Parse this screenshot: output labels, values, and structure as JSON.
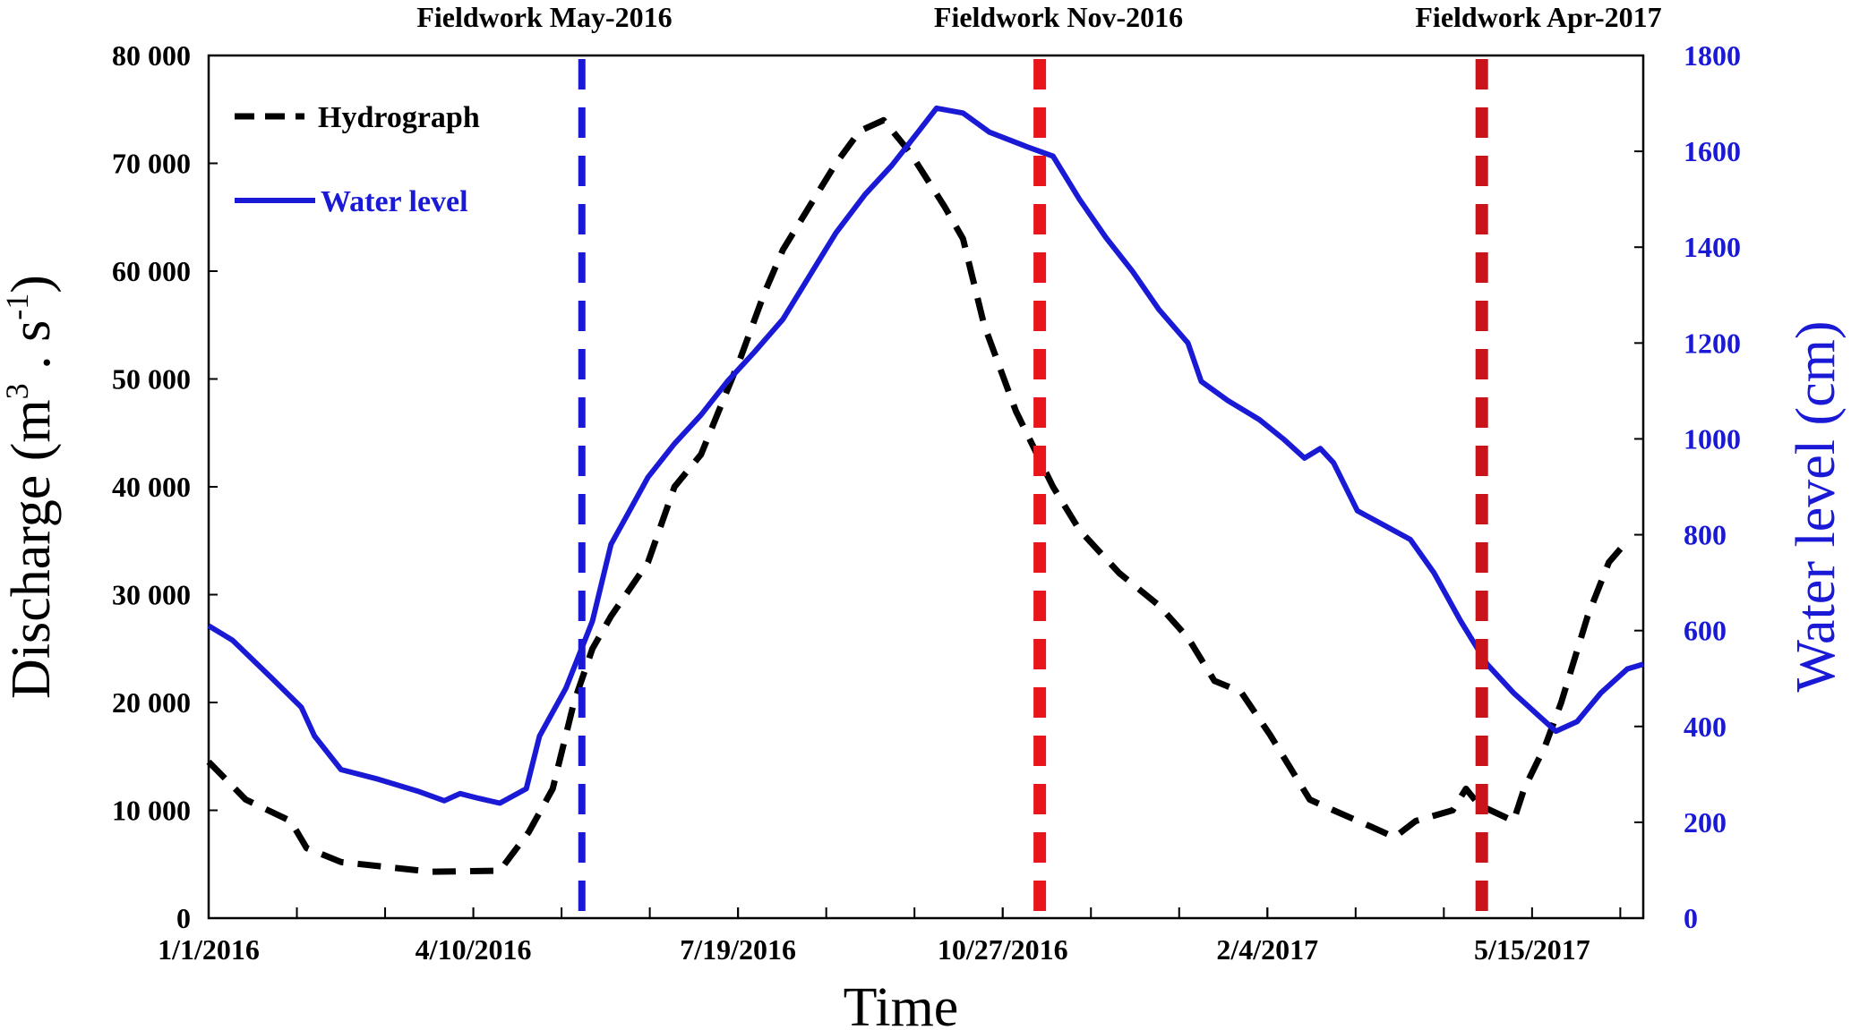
{
  "chart_data": {
    "type": "line",
    "xlabel": "Time",
    "x_ticks": [
      "1/1/2016",
      "4/10/2016",
      "7/19/2016",
      "10/27/2016",
      "2/4/2017",
      "5/15/2017"
    ],
    "x_range": [
      "1/1/2016",
      "5/26/2017"
    ],
    "y_left": {
      "label": "Discharge (m3 . s-1)",
      "label_main": "Discharge (m",
      "label_sup1": "3",
      "label_mid": " . s",
      "label_sup2": "-1",
      "label_end": ")",
      "range": [
        0,
        80000
      ],
      "ticks": [
        "0",
        "10 000",
        "20 000",
        "30 000",
        "40 000",
        "50 000",
        "60 000",
        "70 000",
        "80 000"
      ]
    },
    "y_right": {
      "label": "Water level (cm)",
      "range": [
        0,
        1800
      ],
      "ticks": [
        "0",
        "200",
        "400",
        "600",
        "800",
        "1000",
        "1200",
        "1400",
        "1600",
        "1800"
      ],
      "color": "#1a1ad6"
    },
    "legend_position": "top-left",
    "series": [
      {
        "name": "Hydrograph",
        "axis": "left",
        "color": "#000000",
        "style": "dashed",
        "points": [
          [
            "2016-01-01",
            14500
          ],
          [
            "2016-01-15",
            11000
          ],
          [
            "2016-02-01",
            9000
          ],
          [
            "2016-02-07",
            6500
          ],
          [
            "2016-02-20",
            5200
          ],
          [
            "2016-03-10",
            4700
          ],
          [
            "2016-03-25",
            4300
          ],
          [
            "2016-04-20",
            4400
          ],
          [
            "2016-05-01",
            8000
          ],
          [
            "2016-05-10",
            12000
          ],
          [
            "2016-05-18",
            20000
          ],
          [
            "2016-05-25",
            25000
          ],
          [
            "2016-06-01",
            28000
          ],
          [
            "2016-06-15",
            33000
          ],
          [
            "2016-06-25",
            40000
          ],
          [
            "2016-07-05",
            43000
          ],
          [
            "2016-07-20",
            52000
          ],
          [
            "2016-07-29",
            58000
          ],
          [
            "2016-08-05",
            62000
          ],
          [
            "2016-08-15",
            66000
          ],
          [
            "2016-08-25",
            70000
          ],
          [
            "2016-09-03",
            73000
          ],
          [
            "2016-09-12",
            74000
          ],
          [
            "2016-09-22",
            71000
          ],
          [
            "2016-10-05",
            66000
          ],
          [
            "2016-10-12",
            63000
          ],
          [
            "2016-10-20",
            55000
          ],
          [
            "2016-11-01",
            47000
          ],
          [
            "2016-11-15",
            40000
          ],
          [
            "2016-11-25",
            36000
          ],
          [
            "2016-12-10",
            32000
          ],
          [
            "2016-12-25",
            29000
          ],
          [
            "2017-01-05",
            26000
          ],
          [
            "2017-01-15",
            22000
          ],
          [
            "2017-01-25",
            21000
          ],
          [
            "2017-02-05",
            17000
          ],
          [
            "2017-02-20",
            11000
          ],
          [
            "2017-03-01",
            10000
          ],
          [
            "2017-03-15",
            8500
          ],
          [
            "2017-03-24",
            7500
          ],
          [
            "2017-04-01",
            9000
          ],
          [
            "2017-04-15",
            10000
          ],
          [
            "2017-04-20",
            12000
          ],
          [
            "2017-04-25",
            10500
          ],
          [
            "2017-05-08",
            9000
          ],
          [
            "2017-05-12",
            12000
          ],
          [
            "2017-05-20",
            16000
          ],
          [
            "2017-05-26",
            20000
          ],
          [
            "2017-06-05",
            28000
          ],
          [
            "2017-06-13",
            33000
          ],
          [
            "2017-06-20",
            35000
          ]
        ]
      },
      {
        "name": "Water level",
        "axis": "right",
        "color": "#1a1ad6",
        "style": "solid",
        "points": [
          [
            "2016-01-01",
            610
          ],
          [
            "2016-01-10",
            580
          ],
          [
            "2016-01-25",
            500
          ],
          [
            "2016-02-05",
            440
          ],
          [
            "2016-02-10",
            380
          ],
          [
            "2016-02-20",
            310
          ],
          [
            "2016-03-05",
            290
          ],
          [
            "2016-03-20",
            265
          ],
          [
            "2016-03-30",
            245
          ],
          [
            "2016-04-05",
            260
          ],
          [
            "2016-04-12",
            250
          ],
          [
            "2016-04-20",
            240
          ],
          [
            "2016-04-30",
            270
          ],
          [
            "2016-05-05",
            380
          ],
          [
            "2016-05-15",
            480
          ],
          [
            "2016-05-25",
            620
          ],
          [
            "2016-06-01",
            780
          ],
          [
            "2016-06-08",
            850
          ],
          [
            "2016-06-15",
            920
          ],
          [
            "2016-06-25",
            990
          ],
          [
            "2016-07-05",
            1050
          ],
          [
            "2016-07-15",
            1120
          ],
          [
            "2016-07-25",
            1180
          ],
          [
            "2016-08-05",
            1250
          ],
          [
            "2016-08-15",
            1340
          ],
          [
            "2016-08-25",
            1430
          ],
          [
            "2016-09-05",
            1510
          ],
          [
            "2016-09-15",
            1570
          ],
          [
            "2016-09-25",
            1640
          ],
          [
            "2016-10-02",
            1690
          ],
          [
            "2016-10-12",
            1680
          ],
          [
            "2016-10-22",
            1640
          ],
          [
            "2016-11-05",
            1610
          ],
          [
            "2016-11-15",
            1590
          ],
          [
            "2016-11-25",
            1500
          ],
          [
            "2016-12-05",
            1420
          ],
          [
            "2016-12-15",
            1350
          ],
          [
            "2016-12-25",
            1270
          ],
          [
            "2017-01-05",
            1200
          ],
          [
            "2017-01-10",
            1120
          ],
          [
            "2017-01-20",
            1080
          ],
          [
            "2017-02-01",
            1040
          ],
          [
            "2017-02-10",
            1000
          ],
          [
            "2017-02-18",
            960
          ],
          [
            "2017-02-24",
            980
          ],
          [
            "2017-03-01",
            950
          ],
          [
            "2017-03-10",
            850
          ],
          [
            "2017-03-20",
            820
          ],
          [
            "2017-03-30",
            790
          ],
          [
            "2017-04-08",
            720
          ],
          [
            "2017-04-18",
            620
          ],
          [
            "2017-04-28",
            530
          ],
          [
            "2017-05-08",
            470
          ],
          [
            "2017-05-18",
            420
          ],
          [
            "2017-05-24",
            390
          ],
          [
            "2017-06-01",
            410
          ],
          [
            "2017-06-10",
            470
          ],
          [
            "2017-06-20",
            520
          ],
          [
            "2017-06-26",
            530
          ]
        ]
      }
    ],
    "events": [
      {
        "label": "Fieldwork May-2016",
        "date": "2016-05-21",
        "color": "#1a1ad6"
      },
      {
        "label": "Fieldwork Nov-2016",
        "date": "2016-11-10",
        "color": "#e8161c"
      },
      {
        "label": "Fieldwork Apr-2017",
        "date": "2017-04-26",
        "color": "#c8141a"
      }
    ]
  }
}
